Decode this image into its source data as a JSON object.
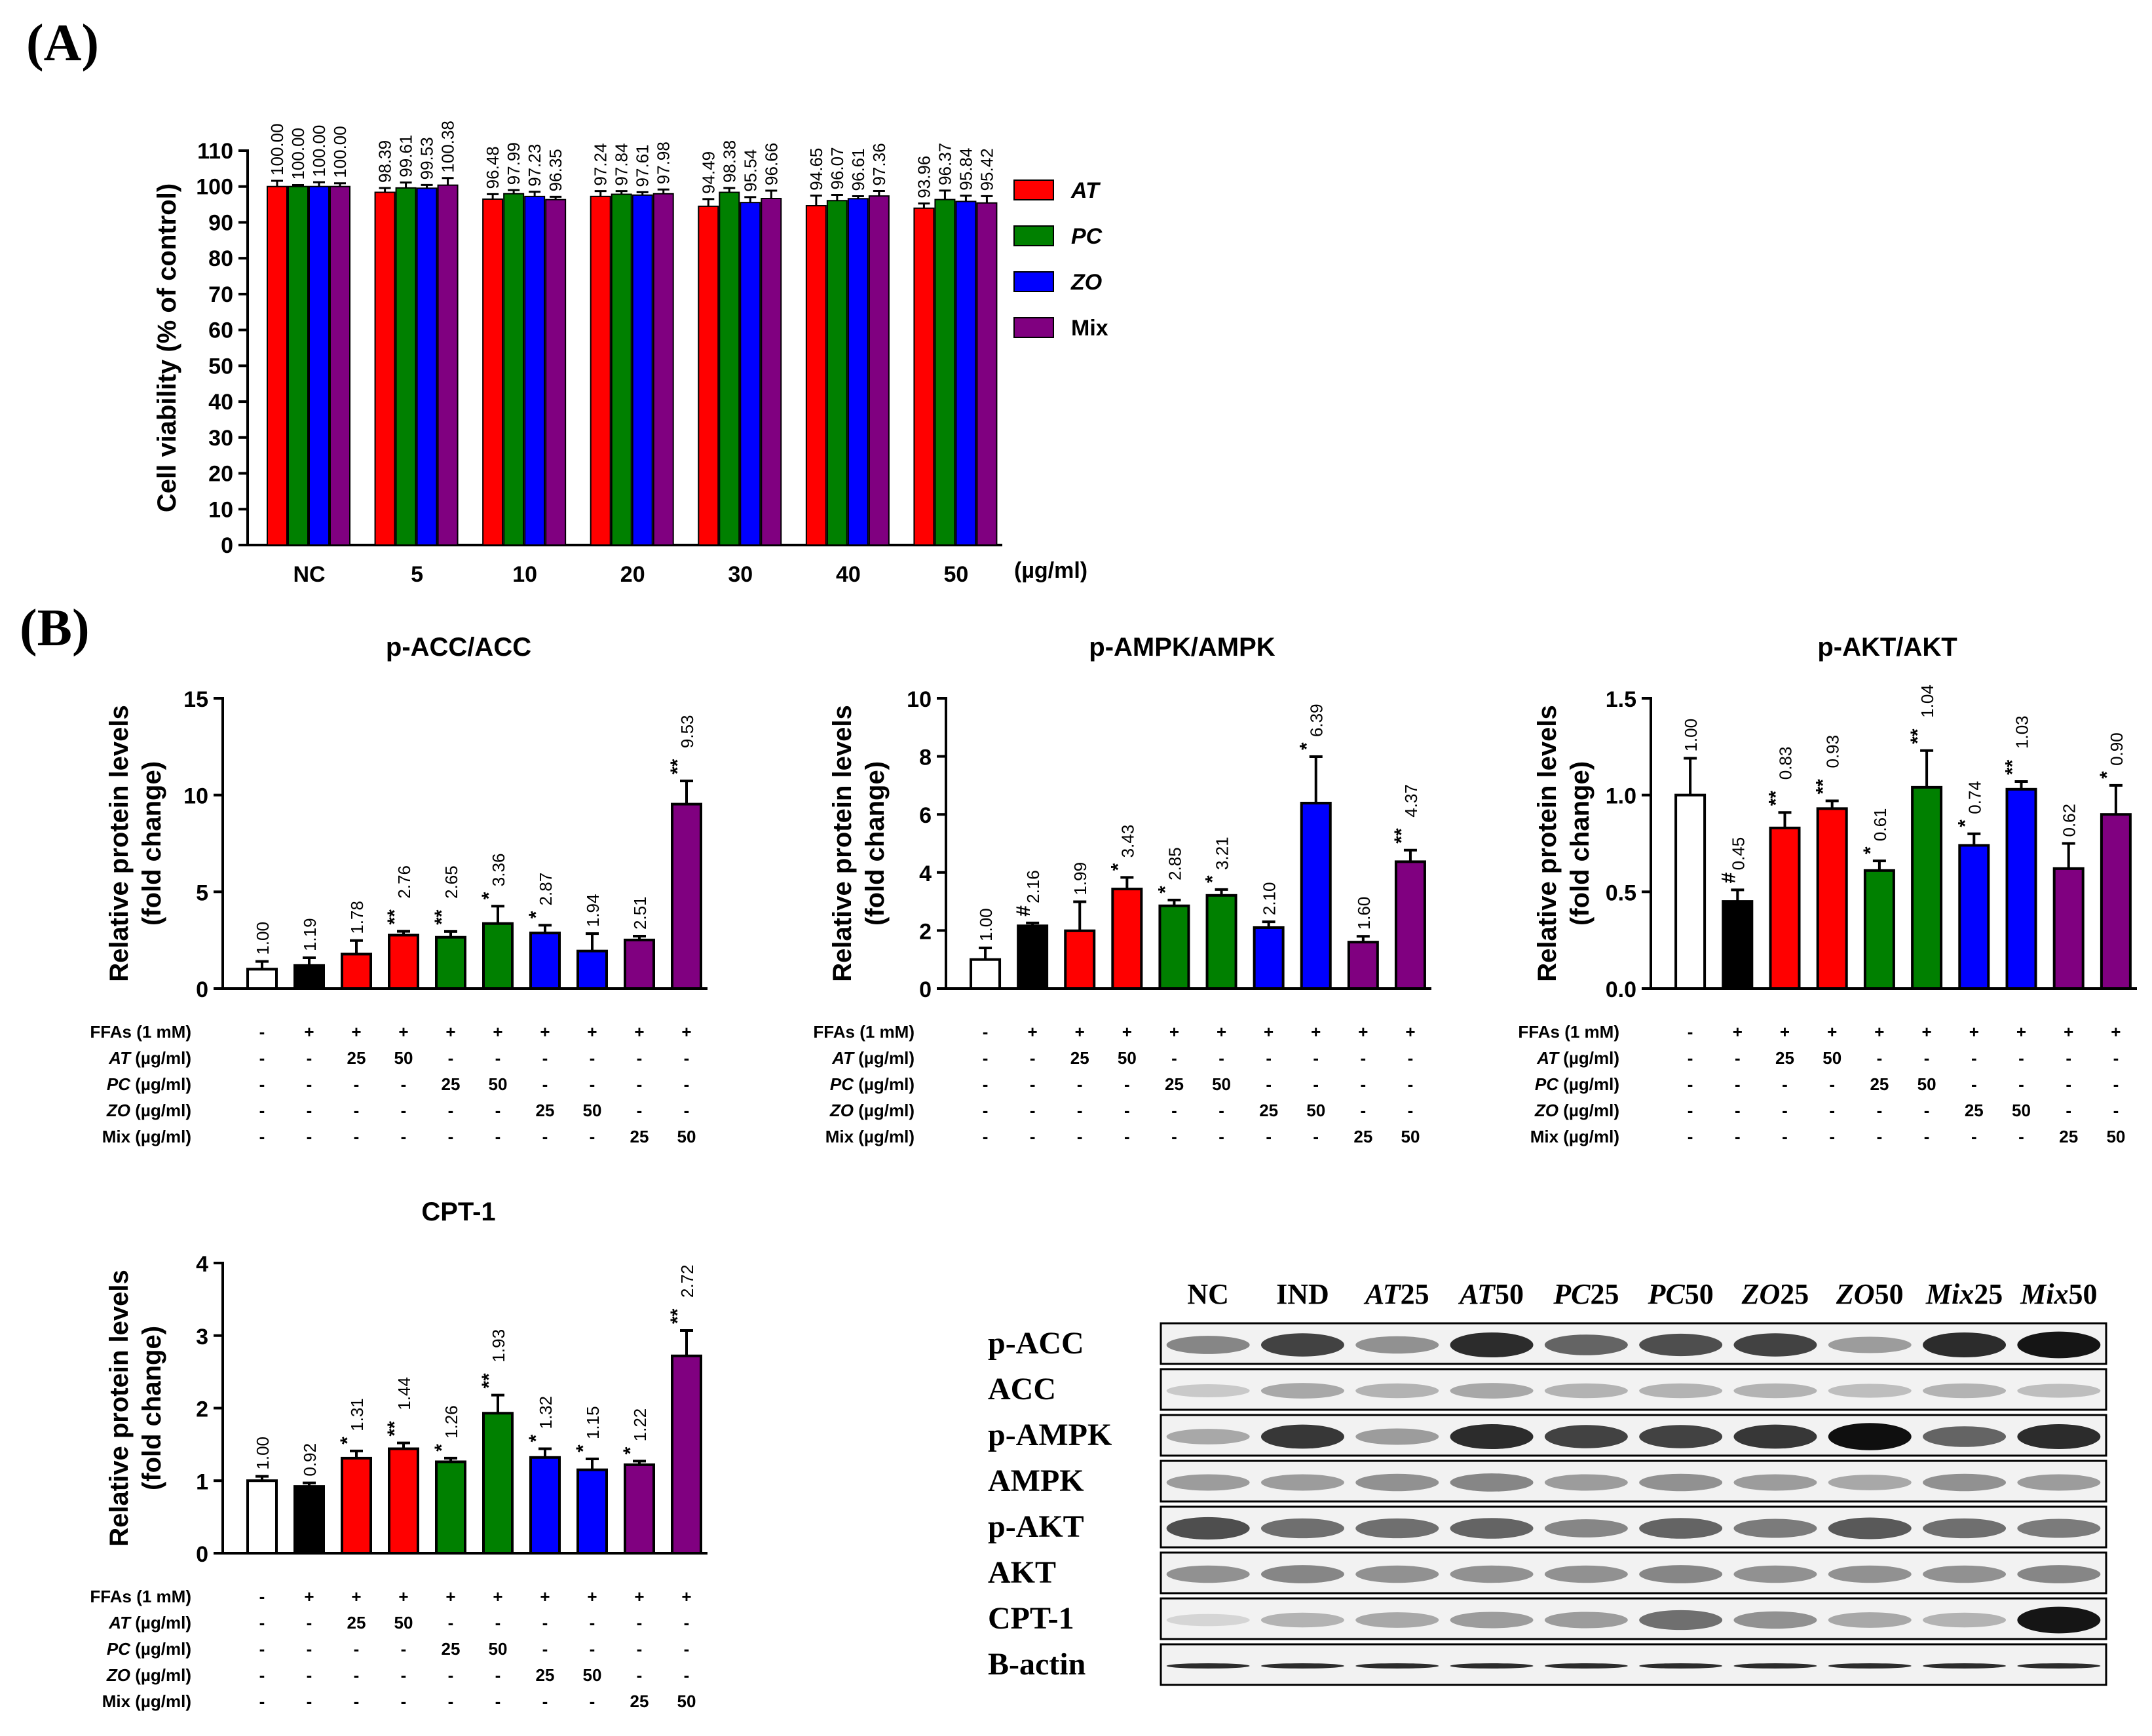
{
  "panel_labels": {
    "A": "(A)",
    "B": "(B)"
  },
  "colors": {
    "AT": "#ff0000",
    "PC": "#008000",
    "ZO": "#0000ff",
    "Mix": "#800080",
    "NC": "#ffffff",
    "IND": "#000000"
  },
  "chart_data": [
    {
      "id": "viability",
      "type": "bar",
      "title": "",
      "ylabel": "Cell viability (% of control)",
      "xlabel": "",
      "x_unit": "(µg/ml)",
      "ylim": [
        0,
        110
      ],
      "yticks": [
        "0",
        "10",
        "20",
        "30",
        "40",
        "50",
        "60",
        "70",
        "80",
        "90",
        "100",
        "110"
      ],
      "categories": [
        "NC",
        "5",
        "10",
        "20",
        "30",
        "40",
        "50"
      ],
      "series": [
        {
          "name": "AT",
          "color": "#ff0000",
          "values": [
            100.0,
            98.39,
            96.48,
            97.24,
            94.49,
            94.65,
            93.96
          ],
          "labels": [
            "100.00",
            "98.39",
            "96.48",
            "97.24",
            "94.49",
            "94.65",
            "93.96"
          ],
          "err": [
            1.6,
            1.2,
            1.4,
            1.5,
            2.0,
            2.8,
            1.3
          ]
        },
        {
          "name": "PC",
          "color": "#008000",
          "values": [
            100.0,
            99.61,
            97.99,
            97.84,
            98.38,
            96.07,
            96.37
          ],
          "labels": [
            "100.00",
            "99.61",
            "97.99",
            "97.84",
            "98.38",
            "96.07",
            "96.37"
          ],
          "err": [
            0.4,
            1.5,
            1.0,
            0.9,
            1.2,
            1.6,
            2.5
          ]
        },
        {
          "name": "ZO",
          "color": "#0000ff",
          "values": [
            100.0,
            99.53,
            97.23,
            97.61,
            95.54,
            96.61,
            95.84
          ],
          "labels": [
            "100.00",
            "99.53",
            "97.23",
            "97.61",
            "95.54",
            "96.61",
            "95.84"
          ],
          "err": [
            1.2,
            0.9,
            1.3,
            0.8,
            1.5,
            0.7,
            1.6
          ]
        },
        {
          "name": "Mix",
          "color": "#800080",
          "values": [
            100.0,
            100.38,
            96.35,
            97.98,
            96.66,
            97.36,
            95.42
          ],
          "labels": [
            "100.00",
            "100.38",
            "96.35",
            "97.98",
            "96.66",
            "97.36",
            "95.42"
          ],
          "err": [
            0.9,
            2.0,
            0.8,
            1.2,
            2.2,
            1.4,
            1.9
          ]
        }
      ],
      "legend": [
        "AT",
        "PC",
        "ZO",
        "Mix"
      ],
      "legend_italic": [
        true,
        true,
        true,
        false
      ]
    },
    {
      "id": "pacc",
      "type": "bar",
      "title": "p-ACC/ACC",
      "ylabel": "Relative protein levels",
      "ylabel2": "(fold change)",
      "ylim": [
        0,
        15
      ],
      "yticks": [
        "0",
        "5",
        "10",
        "15"
      ],
      "values": [
        1.0,
        1.19,
        1.78,
        2.76,
        2.65,
        3.36,
        2.87,
        1.94,
        2.51,
        9.53
      ],
      "labels": [
        "1.00",
        "1.19",
        "1.78",
        "2.76",
        "2.65",
        "3.36",
        "2.87",
        "1.94",
        "2.51",
        "9.53"
      ],
      "stars": [
        "",
        "",
        "",
        "**",
        "**",
        "*",
        "*",
        "",
        "",
        "**"
      ],
      "err": [
        0.4,
        0.4,
        0.7,
        0.2,
        0.3,
        0.9,
        0.4,
        0.9,
        0.2,
        1.2
      ],
      "colors": [
        "#ffffff",
        "#000000",
        "#ff0000",
        "#ff0000",
        "#008000",
        "#008000",
        "#0000ff",
        "#0000ff",
        "#800080",
        "#800080"
      ]
    },
    {
      "id": "pampk",
      "type": "bar",
      "title": "p-AMPK/AMPK",
      "ylabel": "Relative protein levels",
      "ylabel2": "(fold change)",
      "ylim": [
        0,
        10
      ],
      "yticks": [
        "0",
        "2",
        "4",
        "6",
        "8",
        "10"
      ],
      "values": [
        1.0,
        2.16,
        1.99,
        3.43,
        2.85,
        3.21,
        2.1,
        6.39,
        1.6,
        4.37
      ],
      "labels": [
        "1.00",
        "2.16",
        "1.99",
        "3.43",
        "2.85",
        "3.21",
        "2.10",
        "6.39",
        "1.60",
        "4.37"
      ],
      "stars": [
        "",
        "#",
        "",
        "*",
        "*",
        "*",
        "",
        "*",
        "",
        "**"
      ],
      "err": [
        0.4,
        0.1,
        1.0,
        0.4,
        0.2,
        0.2,
        0.2,
        1.6,
        0.2,
        0.4
      ],
      "colors": [
        "#ffffff",
        "#000000",
        "#ff0000",
        "#ff0000",
        "#008000",
        "#008000",
        "#0000ff",
        "#0000ff",
        "#800080",
        "#800080"
      ]
    },
    {
      "id": "pakt",
      "type": "bar",
      "title": "p-AKT/AKT",
      "ylabel": "Relative protein levels",
      "ylabel2": "(fold change)",
      "ylim": [
        0,
        1.5
      ],
      "yticks": [
        "0.0",
        "0.5",
        "1.0",
        "1.5"
      ],
      "values": [
        1.0,
        0.45,
        0.83,
        0.93,
        0.61,
        1.04,
        0.74,
        1.03,
        0.62,
        0.9
      ],
      "labels": [
        "1.00",
        "0.45",
        "0.83",
        "0.93",
        "0.61",
        "1.04",
        "0.74",
        "1.03",
        "0.62",
        "0.90"
      ],
      "stars": [
        "",
        "#",
        "**",
        "**",
        "*",
        "**",
        "*",
        "**",
        "",
        "*"
      ],
      "err": [
        0.19,
        0.06,
        0.08,
        0.04,
        0.05,
        0.19,
        0.06,
        0.04,
        0.13,
        0.15
      ],
      "colors": [
        "#ffffff",
        "#000000",
        "#ff0000",
        "#ff0000",
        "#008000",
        "#008000",
        "#0000ff",
        "#0000ff",
        "#800080",
        "#800080"
      ]
    },
    {
      "id": "cpt1",
      "type": "bar",
      "title": "CPT-1",
      "ylabel": "Relative protein levels",
      "ylabel2": "(fold change)",
      "ylim": [
        0,
        4
      ],
      "yticks": [
        "0",
        "1",
        "2",
        "3",
        "4"
      ],
      "values": [
        1.0,
        0.92,
        1.31,
        1.44,
        1.26,
        1.93,
        1.32,
        1.15,
        1.22,
        2.72
      ],
      "labels": [
        "1.00",
        "0.92",
        "1.31",
        "1.44",
        "1.26",
        "1.93",
        "1.32",
        "1.15",
        "1.22",
        "2.72"
      ],
      "stars": [
        "",
        "",
        "*",
        "**",
        "*",
        "**",
        "*",
        "*",
        "*",
        "**"
      ],
      "err": [
        0.06,
        0.05,
        0.1,
        0.08,
        0.05,
        0.25,
        0.12,
        0.15,
        0.05,
        0.35
      ],
      "colors": [
        "#ffffff",
        "#000000",
        "#ff0000",
        "#ff0000",
        "#008000",
        "#008000",
        "#0000ff",
        "#0000ff",
        "#800080",
        "#800080"
      ]
    }
  ],
  "treatment_table": {
    "rows": [
      {
        "label": "FFAs (1 mM)",
        "italic_prefix": "",
        "suffix": "FFAs (1 mM)",
        "cells": [
          "-",
          "+",
          "+",
          "+",
          "+",
          "+",
          "+",
          "+",
          "+",
          "+"
        ]
      },
      {
        "label": "AT (µg/ml)",
        "italic_prefix": "AT",
        "suffix": " (µg/ml)",
        "cells": [
          "-",
          "-",
          "25",
          "50",
          "-",
          "-",
          "-",
          "-",
          "-",
          "-"
        ]
      },
      {
        "label": "PC (µg/ml)",
        "italic_prefix": "PC",
        "suffix": " (µg/ml)",
        "cells": [
          "-",
          "-",
          "-",
          "-",
          "25",
          "50",
          "-",
          "-",
          "-",
          "-"
        ]
      },
      {
        "label": "ZO (µg/ml)",
        "italic_prefix": "ZO",
        "suffix": " (µg/ml)",
        "cells": [
          "-",
          "-",
          "-",
          "-",
          "-",
          "-",
          "25",
          "50",
          "-",
          "-"
        ]
      },
      {
        "label": "Mix (µg/ml)",
        "italic_prefix": "",
        "suffix": "Mix (µg/ml)",
        "cells": [
          "-",
          "-",
          "-",
          "-",
          "-",
          "-",
          "-",
          "-",
          "25",
          "50"
        ]
      }
    ]
  },
  "western_blot": {
    "columns": [
      {
        "italic": "",
        "normal": "NC"
      },
      {
        "italic": "",
        "normal": "IND"
      },
      {
        "italic": "AT",
        "normal": "25"
      },
      {
        "italic": "AT",
        "normal": "50"
      },
      {
        "italic": "PC",
        "normal": "25"
      },
      {
        "italic": "PC",
        "normal": "50"
      },
      {
        "italic": "ZO",
        "normal": "25"
      },
      {
        "italic": "ZO",
        "normal": "50"
      },
      {
        "italic": "Mix",
        "normal": "25"
      },
      {
        "italic": "Mix",
        "normal": "50"
      }
    ],
    "rows": [
      {
        "label": "p-ACC",
        "intensity": [
          0.45,
          0.75,
          0.4,
          0.85,
          0.6,
          0.7,
          0.75,
          0.35,
          0.85,
          0.95
        ]
      },
      {
        "label": "ACC",
        "intensity": [
          0.15,
          0.3,
          0.25,
          0.3,
          0.25,
          0.25,
          0.25,
          0.2,
          0.25,
          0.2
        ]
      },
      {
        "label": "p-AMPK",
        "intensity": [
          0.3,
          0.8,
          0.35,
          0.85,
          0.75,
          0.75,
          0.8,
          0.98,
          0.6,
          0.85
        ]
      },
      {
        "label": "AMPK",
        "intensity": [
          0.35,
          0.35,
          0.4,
          0.45,
          0.35,
          0.4,
          0.35,
          0.3,
          0.4,
          0.35
        ]
      },
      {
        "label": "p-AKT",
        "intensity": [
          0.7,
          0.55,
          0.55,
          0.6,
          0.45,
          0.6,
          0.5,
          0.65,
          0.55,
          0.5
        ]
      },
      {
        "label": "AKT",
        "intensity": [
          0.4,
          0.45,
          0.4,
          0.4,
          0.4,
          0.45,
          0.4,
          0.4,
          0.4,
          0.45
        ]
      },
      {
        "label": "CPT-1",
        "intensity": [
          0.1,
          0.25,
          0.3,
          0.35,
          0.35,
          0.55,
          0.4,
          0.3,
          0.25,
          0.95
        ]
      },
      {
        "label": "B-actin",
        "intensity": [
          0.85,
          0.85,
          0.85,
          0.85,
          0.85,
          0.85,
          0.85,
          0.85,
          0.85,
          0.85
        ]
      }
    ]
  }
}
